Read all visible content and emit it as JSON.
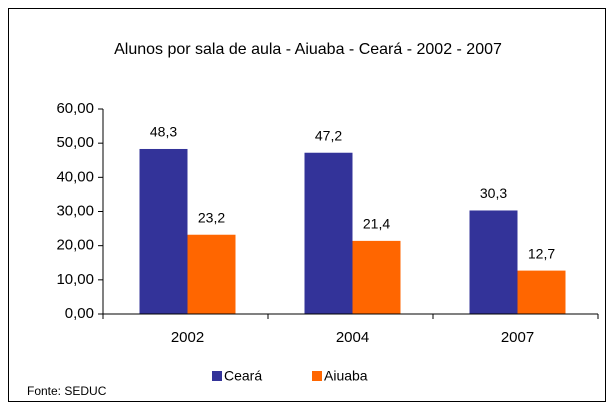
{
  "chart_data": {
    "type": "bar",
    "title": "Alunos por sala de aula - Aiuaba - Ceará - 2002 - 2007",
    "categories": [
      "2002",
      "2004",
      "2007"
    ],
    "series": [
      {
        "name": "Ceará",
        "color": "#333399",
        "values": [
          48.3,
          47.2,
          30.3
        ],
        "value_labels": [
          "48,3",
          "47,2",
          "30,3"
        ]
      },
      {
        "name": "Aiuaba",
        "color": "#ff6600",
        "values": [
          23.2,
          21.4,
          12.7
        ],
        "value_labels": [
          "23,2",
          "21,4",
          "12,7"
        ]
      }
    ],
    "ylim": [
      0,
      60
    ],
    "yticks": [
      {
        "value": 0,
        "label": "0,00"
      },
      {
        "value": 10,
        "label": "10,00"
      },
      {
        "value": 20,
        "label": "20,00"
      },
      {
        "value": 30,
        "label": "30,00"
      },
      {
        "value": 40,
        "label": "40,00"
      },
      {
        "value": 50,
        "label": "50,00"
      },
      {
        "value": 60,
        "label": "60,00"
      }
    ],
    "legend": "bottom",
    "source": "Fonte: SEDUC"
  }
}
